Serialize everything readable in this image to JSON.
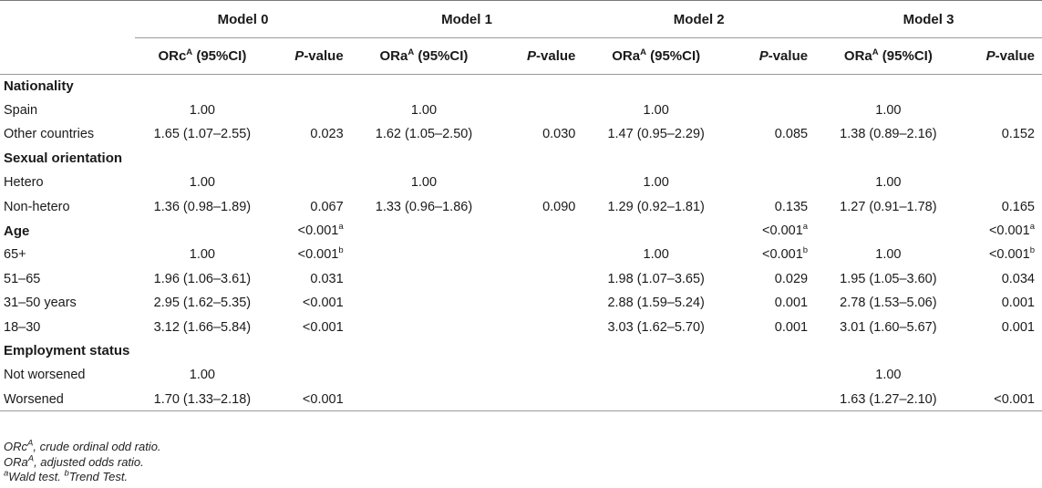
{
  "header": {
    "models": [
      "Model 0",
      "Model 1",
      "Model 2",
      "Model 3"
    ],
    "sub": [
      {
        "or_main": "ORc",
        "or_sup": "A",
        "or_rest": " (95%CI)",
        "p_italic": "P",
        "p_rest": "-value"
      },
      {
        "or_main": "ORa",
        "or_sup": "A",
        "or_rest": " (95%CI)",
        "p_italic": "P",
        "p_rest": "-value"
      },
      {
        "or_main": "ORa",
        "or_sup": "A",
        "or_rest": " (95%CI)",
        "p_italic": "P",
        "p_rest": "-value"
      },
      {
        "or_main": "ORa",
        "or_sup": "A",
        "or_rest": " (95%CI)",
        "p_italic": "P",
        "p_rest": "-value"
      }
    ]
  },
  "rows": [
    {
      "type": "section",
      "label": "Nationality",
      "cells": [
        [
          "",
          ""
        ],
        [
          "",
          ""
        ],
        [
          "",
          ""
        ],
        [
          "",
          ""
        ]
      ]
    },
    {
      "type": "row",
      "label": "Spain",
      "cells": [
        [
          "1.00",
          ""
        ],
        [
          "1.00",
          ""
        ],
        [
          "1.00",
          ""
        ],
        [
          "1.00",
          ""
        ]
      ]
    },
    {
      "type": "row",
      "label": "Other countries",
      "cells": [
        [
          "1.65 (1.07–2.55)",
          "0.023"
        ],
        [
          "1.62 (1.05–2.50)",
          "0.030"
        ],
        [
          "1.47 (0.95–2.29)",
          "0.085"
        ],
        [
          "1.38 (0.89–2.16)",
          "0.152"
        ]
      ]
    },
    {
      "type": "section",
      "label": "Sexual orientation",
      "cells": [
        [
          "",
          ""
        ],
        [
          "",
          ""
        ],
        [
          "",
          ""
        ],
        [
          "",
          ""
        ]
      ]
    },
    {
      "type": "row",
      "label": "Hetero",
      "cells": [
        [
          "1.00",
          ""
        ],
        [
          "1.00",
          ""
        ],
        [
          "1.00",
          ""
        ],
        [
          "1.00",
          ""
        ]
      ]
    },
    {
      "type": "row",
      "label": "Non-hetero",
      "cells": [
        [
          "1.36 (0.98–1.89)",
          "0.067"
        ],
        [
          "1.33 (0.96–1.86)",
          "0.090"
        ],
        [
          "1.29 (0.92–1.81)",
          "0.135"
        ],
        [
          "1.27 (0.91–1.78)",
          "0.165"
        ]
      ]
    },
    {
      "type": "section",
      "label": "Age",
      "cells": [
        [
          "",
          "<0.001",
          "a"
        ],
        [
          "",
          ""
        ],
        [
          "",
          "<0.001",
          "a"
        ],
        [
          "",
          "<0.001",
          "a"
        ]
      ]
    },
    {
      "type": "row",
      "label": "65+",
      "cells": [
        [
          "1.00",
          "<0.001",
          "b"
        ],
        [
          "",
          ""
        ],
        [
          "1.00",
          "<0.001",
          "b"
        ],
        [
          "1.00",
          "<0.001",
          "b"
        ]
      ]
    },
    {
      "type": "row",
      "label": "51–65",
      "cells": [
        [
          "1.96 (1.06–3.61)",
          "0.031"
        ],
        [
          "",
          ""
        ],
        [
          "1.98 (1.07–3.65)",
          "0.029"
        ],
        [
          "1.95 (1.05–3.60)",
          "0.034"
        ]
      ]
    },
    {
      "type": "row",
      "label": "31–50 years",
      "cells": [
        [
          "2.95 (1.62–5.35)",
          "<0.001"
        ],
        [
          "",
          ""
        ],
        [
          "2.88 (1.59–5.24)",
          "0.001"
        ],
        [
          "2.78 (1.53–5.06)",
          "0.001"
        ]
      ]
    },
    {
      "type": "row",
      "label": "18–30",
      "cells": [
        [
          "3.12 (1.66–5.84)",
          "<0.001"
        ],
        [
          "",
          ""
        ],
        [
          "3.03 (1.62–5.70)",
          "0.001"
        ],
        [
          "3.01 (1.60–5.67)",
          "0.001"
        ]
      ]
    },
    {
      "type": "section",
      "label": "Employment status",
      "cells": [
        [
          "",
          ""
        ],
        [
          "",
          ""
        ],
        [
          "",
          ""
        ],
        [
          "",
          ""
        ]
      ]
    },
    {
      "type": "row",
      "label": "Not worsened",
      "cells": [
        [
          "1.00",
          ""
        ],
        [
          "",
          ""
        ],
        [
          "",
          ""
        ],
        [
          "1.00",
          ""
        ]
      ]
    },
    {
      "type": "row",
      "label": "Worsened",
      "cells": [
        [
          "1.70 (1.33–2.18)",
          "<0.001"
        ],
        [
          "",
          ""
        ],
        [
          "",
          ""
        ],
        [
          "1.63 (1.27–2.10)",
          "<0.001"
        ]
      ]
    }
  ],
  "footnotes": {
    "line1_main": "ORc",
    "line1_sup": "A",
    "line1_rest": ", crude ordinal odd ratio.",
    "line2_main": "ORa",
    "line2_sup": "A",
    "line2_rest": ", adjusted odds ratio.",
    "line3_sup_a": "a",
    "line3_a": "Wald test. ",
    "line3_sup_b": "b",
    "line3_b": "Trend Test."
  }
}
